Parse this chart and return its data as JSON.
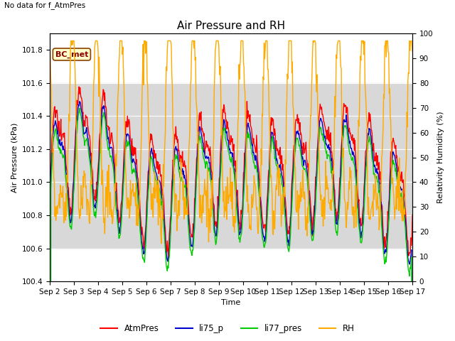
{
  "title": "Air Pressure and RH",
  "top_left_text": "No data for f_AtmPres",
  "xlabel": "Time",
  "ylabel_left": "Air Pressure (kPa)",
  "ylabel_right": "Relativity Humidity (%)",
  "box_label": "BC_met",
  "ylim_left": [
    100.4,
    101.9
  ],
  "ylim_right": [
    0,
    100
  ],
  "yticks_left": [
    100.4,
    100.6,
    100.8,
    101.0,
    101.2,
    101.4,
    101.6,
    101.8
  ],
  "yticks_right": [
    0,
    10,
    20,
    30,
    40,
    50,
    60,
    70,
    80,
    90,
    100
  ],
  "xtick_labels": [
    "Sep 2",
    "Sep 3",
    "Sep 4",
    "Sep 5",
    "Sep 6",
    "Sep 7",
    "Sep 8",
    "Sep 9",
    "Sep 10",
    "Sep 11\n",
    "Sep 12",
    "Sep 13",
    "Sep 14",
    "Sep 15",
    "Sep 16",
    "Sep 17"
  ],
  "bg_band_ylim": [
    100.6,
    101.6
  ],
  "bg_color": "#d8d8d8",
  "plot_bg": "#ffffff",
  "colors": {
    "AtmPres": "#ff0000",
    "li75_p": "#0000cc",
    "li77_pres": "#00cc00",
    "RH": "#ffaa00"
  },
  "linewidths": {
    "AtmPres": 1.0,
    "li75_p": 1.0,
    "li77_pres": 1.0,
    "RH": 1.0
  },
  "legend_labels": [
    "AtmPres",
    "li75_p",
    "li77_pres",
    "RH"
  ],
  "title_fontsize": 11,
  "axis_fontsize": 8,
  "tick_fontsize": 7.5
}
